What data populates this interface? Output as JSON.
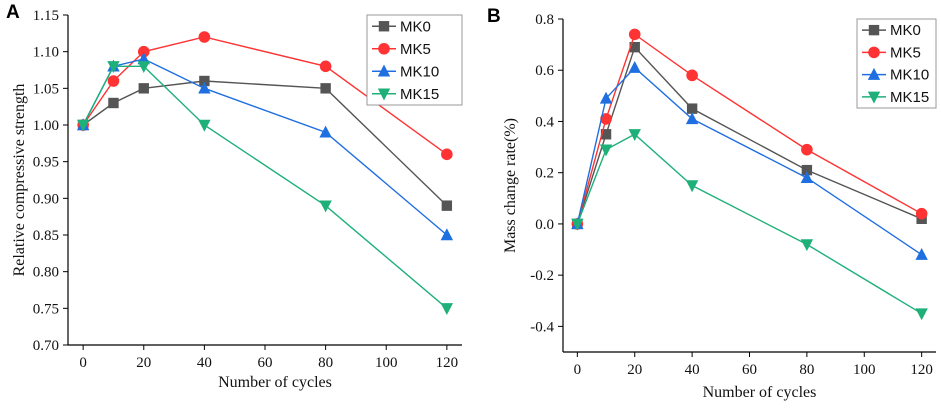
{
  "chart_data": [
    {
      "panel": "A",
      "type": "line",
      "title": "",
      "xlabel": "Number of cycles",
      "ylabel": "Relative compressive strength",
      "x": [
        0,
        10,
        20,
        40,
        80,
        120
      ],
      "xlim": [
        -5,
        125
      ],
      "ylim": [
        0.7,
        1.15
      ],
      "xticks": [
        "0",
        "20",
        "40",
        "60",
        "80",
        "100",
        "120"
      ],
      "xtick_values": [
        0,
        20,
        40,
        60,
        80,
        100,
        120
      ],
      "yticks": [
        "0.70",
        "0.75",
        "0.80",
        "0.85",
        "0.90",
        "0.95",
        "1.00",
        "1.05",
        "1.10",
        "1.15"
      ],
      "ytick_values": [
        0.7,
        0.75,
        0.8,
        0.85,
        0.9,
        0.95,
        1.0,
        1.05,
        1.1,
        1.15
      ],
      "legend_position": "top-right",
      "series": [
        {
          "name": "MK0",
          "color": "#555555",
          "marker": "square",
          "values": [
            1.0,
            1.03,
            1.05,
            1.06,
            1.05,
            0.89
          ]
        },
        {
          "name": "MK5",
          "color": "#ff3333",
          "marker": "circle",
          "values": [
            1.0,
            1.06,
            1.1,
            1.12,
            1.08,
            0.96
          ]
        },
        {
          "name": "MK10",
          "color": "#1f6fe0",
          "marker": "triangle-up",
          "values": [
            1.0,
            1.08,
            1.09,
            1.05,
            0.99,
            0.85
          ]
        },
        {
          "name": "MK15",
          "color": "#1fb07a",
          "marker": "triangle-down",
          "values": [
            1.0,
            1.08,
            1.08,
            1.0,
            0.89,
            0.75
          ]
        }
      ]
    },
    {
      "panel": "B",
      "type": "line",
      "title": "",
      "xlabel": "Number of  cycles",
      "ylabel": "Mass change rate(%)",
      "x": [
        0,
        10,
        20,
        40,
        80,
        120
      ],
      "xlim": [
        -5,
        125
      ],
      "ylim": [
        -0.5,
        0.8
      ],
      "xticks": [
        "0",
        "20",
        "40",
        "60",
        "80",
        "100",
        "120"
      ],
      "xtick_values": [
        0,
        20,
        40,
        60,
        80,
        100,
        120
      ],
      "yticks": [
        "-0.4",
        "-0.2",
        "0.0",
        "0.2",
        "0.4",
        "0.6",
        "0.8"
      ],
      "ytick_values": [
        -0.4,
        -0.2,
        0.0,
        0.2,
        0.4,
        0.6,
        0.8
      ],
      "legend_position": "top-right",
      "series": [
        {
          "name": "MK0",
          "color": "#555555",
          "marker": "square",
          "values": [
            0.0,
            0.35,
            0.69,
            0.45,
            0.21,
            0.02
          ]
        },
        {
          "name": "MK5",
          "color": "#ff3333",
          "marker": "circle",
          "values": [
            0.0,
            0.41,
            0.74,
            0.58,
            0.29,
            0.04
          ]
        },
        {
          "name": "MK10",
          "color": "#1f6fe0",
          "marker": "triangle-up",
          "values": [
            0.0,
            0.49,
            0.61,
            0.41,
            0.18,
            -0.12
          ]
        },
        {
          "name": "MK15",
          "color": "#1fb07a",
          "marker": "triangle-down",
          "values": [
            0.0,
            0.29,
            0.35,
            0.15,
            -0.08,
            -0.35
          ]
        }
      ]
    }
  ]
}
